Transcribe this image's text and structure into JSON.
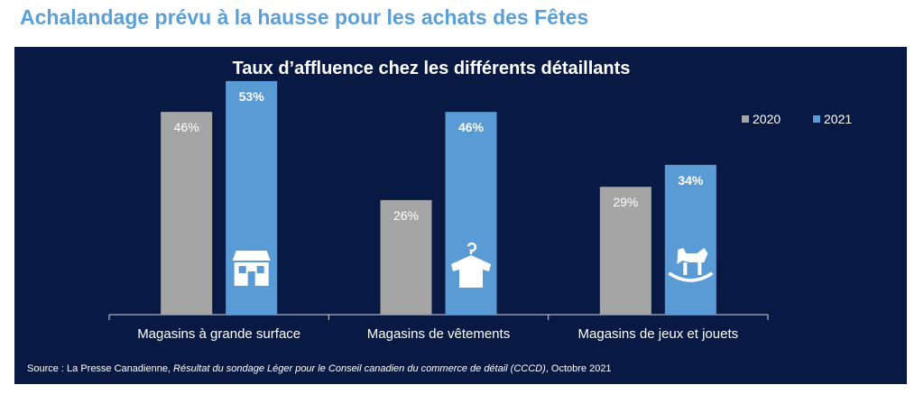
{
  "header": {
    "title": "Achalandage prévu à la hausse pour les achats des Fêtes"
  },
  "chart_data": {
    "type": "bar",
    "title": "Taux d’affluence chez les différents détaillants",
    "categories": [
      "Magasins à grande surface",
      "Magasins de vêtements",
      "Magasins de jeux et jouets"
    ],
    "category_icons": [
      "store-icon",
      "shirt-hanger-icon",
      "rocking-horse-icon"
    ],
    "series": [
      {
        "name": "2020",
        "values": [
          46,
          26,
          29
        ],
        "labels": [
          "46%",
          "26%",
          "29%"
        ],
        "color": "#a5a5a5"
      },
      {
        "name": "2021",
        "values": [
          53,
          46,
          34
        ],
        "labels": [
          "53%",
          "46%",
          "34%"
        ],
        "color": "#5b9bd5"
      }
    ],
    "ylim": [
      0,
      60
    ],
    "grid": false,
    "legend": "top-right",
    "xlabel": "",
    "ylabel": ""
  },
  "source": {
    "prefix": "Source : La Presse Canadienne, ",
    "italic": "Résultat du sondage Léger pour le Conseil canadien du commerce de détail (CCCD)",
    "suffix": ", Octobre 2021"
  }
}
